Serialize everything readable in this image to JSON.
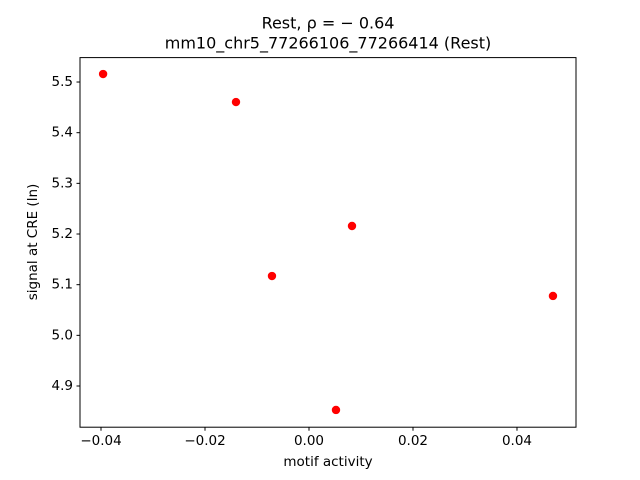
{
  "chart_data": {
    "type": "scatter",
    "title": "Rest, ρ = − 0.64",
    "subtitle": "mm10_chr5_77266106_77266414 (Rest)",
    "x_label": "motif activity",
    "y_label": "signal at CRE (ln)",
    "color": "#ff0000",
    "x": [
      -0.0396,
      -0.01404,
      0.00827,
      -0.00712,
      0.04692,
      0.00519
    ],
    "y": [
      5.5158,
      5.4605,
      5.2158,
      5.1171,
      5.0777,
      4.8527
    ],
    "xlim": [
      -0.04404,
      0.05135
    ],
    "ylim": [
      4.8187,
      5.5482
    ],
    "xticks": [
      {
        "value": -0.04,
        "label": "−0.04"
      },
      {
        "value": -0.02,
        "label": "−0.02"
      },
      {
        "value": 0,
        "label": "0.00"
      },
      0.02,
      0.04
    ],
    "yticks": [
      4.9,
      {
        "value": 5.0,
        "label": "5.0"
      },
      5.1,
      5.2,
      5.3,
      5.4,
      5.5
    ],
    "grid": false
  }
}
